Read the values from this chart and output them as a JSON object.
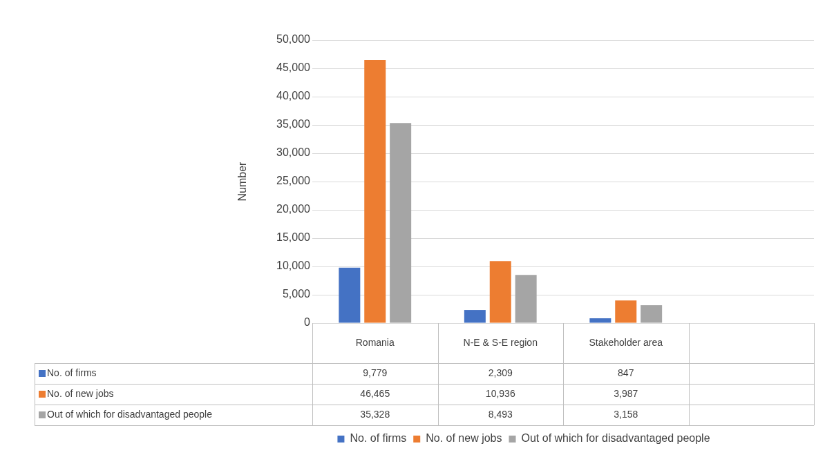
{
  "chart_data": {
    "type": "bar",
    "ylabel": "Number",
    "categories": [
      "Romania",
      "N-E & S-E region",
      "Stakeholder area",
      null
    ],
    "series": [
      {
        "name": "No. of firms",
        "color": "#4472c4",
        "values": [
          9779,
          2309,
          847,
          null
        ],
        "value_labels": [
          "9,779",
          "2,309",
          "847",
          null
        ]
      },
      {
        "name": "No. of new jobs",
        "color": "#ed7d31",
        "values": [
          46465,
          10936,
          3987,
          null
        ],
        "value_labels": [
          "46,465",
          "10,936",
          "3,987",
          null
        ]
      },
      {
        "name": "Out of which for disadvantaged people",
        "color": "#a5a5a5",
        "values": [
          35328,
          8493,
          3158,
          null
        ],
        "value_labels": [
          "35,328",
          "8,493",
          "3,158",
          null
        ]
      }
    ],
    "ylim": [
      0,
      50000
    ],
    "yticks": [
      0,
      {
        "value": 5000,
        "label": "5,000"
      },
      {
        "value": 10000,
        "label": "10,000"
      },
      {
        "value": 15000,
        "label": "15,000"
      },
      {
        "value": 20000,
        "label": "20,000"
      },
      {
        "value": 25000,
        "label": "25,000"
      },
      {
        "value": 30000,
        "label": "30,000"
      },
      {
        "value": 35000,
        "label": "35,000"
      },
      {
        "value": 40000,
        "label": "40,000"
      },
      {
        "value": 45000,
        "label": "45,000"
      },
      {
        "value": 50000,
        "label": "50,000"
      }
    ],
    "grid": "y",
    "legend": "bottom"
  }
}
